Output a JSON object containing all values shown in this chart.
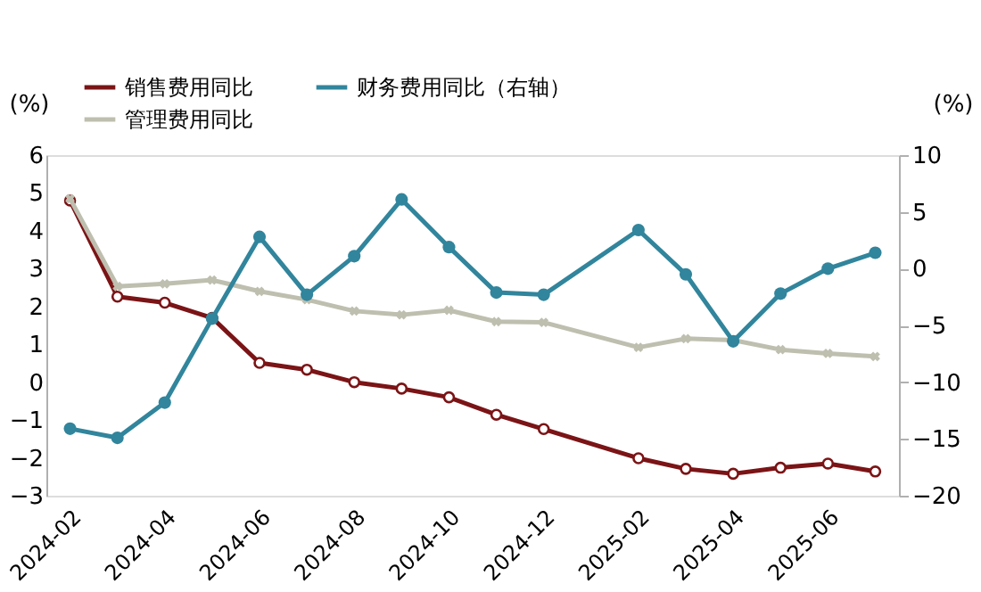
{
  "chart_data": {
    "type": "line",
    "categories": [
      "2024-02",
      null,
      "2024-04",
      null,
      "2024-06",
      null,
      "2024-08",
      null,
      "2024-10",
      null,
      "2024-12",
      null,
      "2025-02",
      null,
      "2025-04",
      null,
      "2025-06",
      null
    ],
    "series": [
      {
        "name": "销售费用同比",
        "color": "#7b1416",
        "marker": "circle",
        "values": [
          4.8,
          2.26,
          2.1,
          1.7,
          0.51,
          0.33,
          0.0,
          -0.17,
          -0.4,
          -0.86,
          -1.24,
          null,
          -2.01,
          -2.29,
          -2.42,
          -2.26,
          -2.15,
          -2.36
        ]
      },
      {
        "name": "管理费用同比",
        "color": "#bfbfb0",
        "marker": "cross",
        "values": [
          4.85,
          2.53,
          2.6,
          2.7,
          2.4,
          2.18,
          1.88,
          1.78,
          1.9,
          1.6,
          1.58,
          null,
          0.92,
          1.15,
          1.11,
          0.86,
          0.76,
          0.68
        ]
      },
      {
        "name": "财务费用同比（右轴）",
        "color": "#31859c",
        "marker": "circle",
        "axis": "y2",
        "values": [
          -14.1,
          -14.9,
          -11.8,
          -4.4,
          2.8,
          -2.3,
          1.1,
          6.1,
          1.9,
          -2.1,
          -2.3,
          null,
          3.4,
          -0.5,
          -6.4,
          -2.2,
          0.0,
          1.4
        ]
      }
    ],
    "ylabel": "(%)",
    "y2label": "(%)",
    "ylim": [
      -3,
      6
    ],
    "yticks": [
      -3,
      -2,
      -1,
      0,
      1,
      2,
      3,
      4,
      5,
      6
    ],
    "y2lim": [
      -20,
      10
    ],
    "y2ticks": [
      -20,
      -15,
      -10,
      -5,
      0,
      5,
      10
    ],
    "legend": "top",
    "grid": false
  }
}
